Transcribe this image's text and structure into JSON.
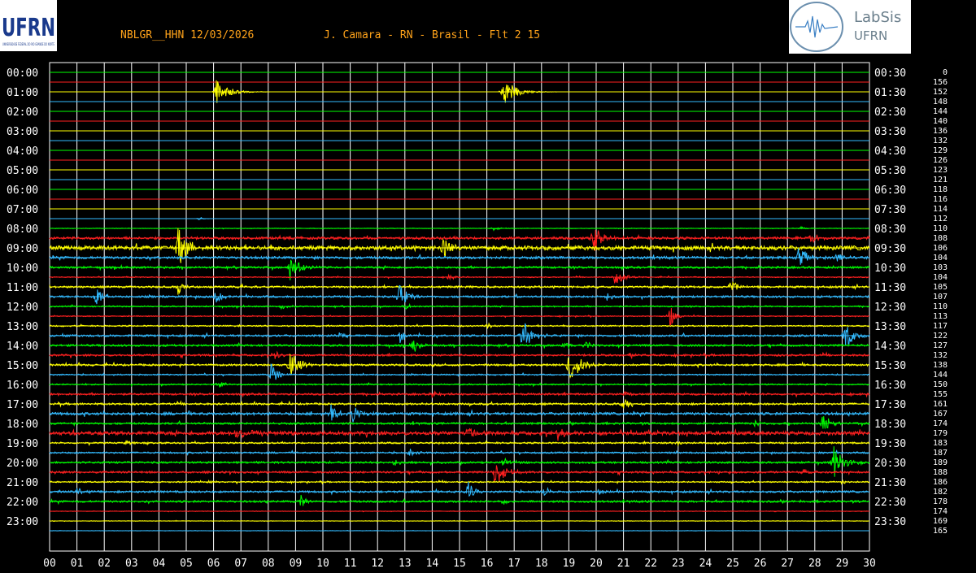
{
  "header": {
    "station_date": "NBLGR__HHN 12/03/2026",
    "location_filter": "J. Camara - RN - Brasil - Flt 2 15"
  },
  "logos": {
    "left": {
      "text": "UFRN",
      "subtext": "UNIVERSIDADE FEDERAL DO RIO GRANDE DO NORTE",
      "color": "#1a3a8c"
    },
    "right": {
      "line1": "LabSis",
      "line2": "UFRN",
      "color": "#6b7f8c"
    }
  },
  "colors": {
    "background": "#000000",
    "grid": "#ffffff",
    "header_text": "#ffa31a",
    "trace_cycle": [
      "#00ff00",
      "#ff2020",
      "#ffff00",
      "#33bbff"
    ]
  },
  "chart_data": {
    "type": "line",
    "title": "NBLGR__HHN 12/03/2026 J. Camara - RN - Brasil - Flt 2 15",
    "xlabel": "",
    "ylabel": "",
    "x_ticks": [
      "00",
      "01",
      "02",
      "03",
      "04",
      "05",
      "06",
      "07",
      "08",
      "09",
      "10",
      "11",
      "12",
      "13",
      "14",
      "15",
      "16",
      "17",
      "18",
      "19",
      "20",
      "21",
      "22",
      "23",
      "24",
      "25",
      "26",
      "27",
      "28",
      "29",
      "30"
    ],
    "xlim": [
      0,
      30
    ],
    "left_tick_labels": [
      "00:00",
      "01:00",
      "02:00",
      "03:00",
      "04:00",
      "05:00",
      "06:00",
      "07:00",
      "08:00",
      "09:00",
      "10:00",
      "11:00",
      "12:00",
      "13:00",
      "14:00",
      "15:00",
      "16:00",
      "17:00",
      "18:00",
      "19:00",
      "20:00",
      "21:00",
      "22:00",
      "23:00"
    ],
    "right_tick_labels": [
      "00:30",
      "01:30",
      "02:30",
      "03:30",
      "04:30",
      "05:30",
      "06:30",
      "07:30",
      "08:30",
      "09:30",
      "10:30",
      "11:30",
      "12:30",
      "13:30",
      "14:30",
      "15:30",
      "16:30",
      "17:30",
      "18:30",
      "19:30",
      "20:30",
      "21:30",
      "22:30",
      "23:30"
    ],
    "scale_values": [
      0,
      156,
      152,
      148,
      144,
      140,
      136,
      132,
      129,
      126,
      123,
      121,
      118,
      116,
      114,
      112,
      110,
      108,
      106,
      104,
      103,
      104,
      105,
      107,
      110,
      113,
      117,
      122,
      127,
      132,
      138,
      144,
      150,
      155,
      161,
      167,
      174,
      179,
      183,
      187,
      189,
      188,
      186,
      182,
      178,
      174,
      169,
      165
    ],
    "grid": true,
    "traces": [
      {
        "noise": 0,
        "events": []
      },
      {
        "noise": 0,
        "events": []
      },
      {
        "noise": 0,
        "events": [
          [
            6.1,
            16,
            0.9
          ],
          [
            16.6,
            18,
            0.9
          ]
        ]
      },
      {
        "noise": 0,
        "events": []
      },
      {
        "noise": 0,
        "events": []
      },
      {
        "noise": 0,
        "events": []
      },
      {
        "noise": 0,
        "events": []
      },
      {
        "noise": 0,
        "events": []
      },
      {
        "noise": 0,
        "events": []
      },
      {
        "noise": 0,
        "events": []
      },
      {
        "noise": 0,
        "events": []
      },
      {
        "noise": 0,
        "events": []
      },
      {
        "noise": 0,
        "events": []
      },
      {
        "noise": 0,
        "events": []
      },
      {
        "noise": 0,
        "events": []
      },
      {
        "noise": 0,
        "events": [
          [
            5.5,
            3,
            0.2
          ]
        ]
      },
      {
        "noise": 0.3,
        "events": [
          [
            16.2,
            3,
            0.6
          ],
          [
            27.5,
            2,
            0.4
          ]
        ]
      },
      {
        "noise": 1.5,
        "events": [
          [
            19.9,
            20,
            0.6
          ],
          [
            27.8,
            8,
            0.5
          ]
        ]
      },
      {
        "noise": 2.5,
        "events": [
          [
            4.7,
            24,
            0.8
          ],
          [
            14.4,
            16,
            0.7
          ]
        ]
      },
      {
        "noise": 1.5,
        "events": [
          [
            27.4,
            14,
            0.7
          ],
          [
            28.8,
            6,
            0.5
          ]
        ]
      },
      {
        "noise": 1.2,
        "events": [
          [
            8.8,
            16,
            0.7
          ]
        ]
      },
      {
        "noise": 0.6,
        "events": [
          [
            14.6,
            5,
            0.4
          ],
          [
            20.7,
            12,
            0.6
          ]
        ]
      },
      {
        "noise": 1.2,
        "events": [
          [
            4.7,
            9,
            0.4
          ],
          [
            24.9,
            9,
            0.5
          ],
          [
            7.0,
            4,
            0.5
          ]
        ]
      },
      {
        "noise": 1.2,
        "events": [
          [
            1.7,
            16,
            0.4
          ],
          [
            6.1,
            9,
            0.4
          ],
          [
            12.8,
            16,
            0.6
          ],
          [
            20.4,
            5,
            0.4
          ]
        ]
      },
      {
        "noise": 0.8,
        "events": [
          [
            8.5,
            5,
            0.4
          ],
          [
            13.0,
            5,
            0.4
          ]
        ]
      },
      {
        "noise": 0.6,
        "events": [
          [
            22.7,
            14,
            0.4
          ]
        ]
      },
      {
        "noise": 0.8,
        "events": [
          [
            16.0,
            4,
            0.4
          ]
        ]
      },
      {
        "noise": 1.2,
        "events": [
          [
            17.3,
            20,
            0.7
          ],
          [
            12.8,
            11,
            0.4
          ],
          [
            29.1,
            18,
            0.6
          ],
          [
            10.6,
            5,
            0.4
          ]
        ]
      },
      {
        "noise": 1.2,
        "events": [
          [
            13.3,
            11,
            0.5
          ],
          [
            18.8,
            6,
            0.5
          ],
          [
            19.6,
            5,
            0.5
          ]
        ]
      },
      {
        "noise": 1.2,
        "events": [
          [
            8.2,
            9,
            0.4
          ],
          [
            21.2,
            4,
            0.4
          ]
        ]
      },
      {
        "noise": 1.2,
        "events": [
          [
            8.8,
            20,
            0.7
          ],
          [
            19.0,
            24,
            0.8
          ]
        ]
      },
      {
        "noise": 0.8,
        "events": [
          [
            8.1,
            16,
            0.5
          ]
        ]
      },
      {
        "noise": 0.8,
        "events": [
          [
            6.2,
            5,
            0.4
          ]
        ]
      },
      {
        "noise": 1.2,
        "events": [
          [
            14.0,
            5,
            0.6
          ],
          [
            21.0,
            4,
            0.4
          ]
        ]
      },
      {
        "noise": 1.2,
        "events": [
          [
            21.0,
            9,
            0.5
          ]
        ]
      },
      {
        "noise": 1.6,
        "events": [
          [
            10.3,
            12,
            0.5
          ],
          [
            11.1,
            12,
            0.6
          ]
        ]
      },
      {
        "noise": 1.2,
        "events": [
          [
            28.3,
            16,
            0.5
          ],
          [
            25.8,
            4,
            0.4
          ]
        ]
      },
      {
        "noise": 2.2,
        "events": [
          [
            6.8,
            6,
            1.8
          ],
          [
            15.3,
            9,
            0.5
          ],
          [
            18.6,
            9,
            0.5
          ]
        ]
      },
      {
        "noise": 1.0,
        "events": [
          [
            2.8,
            4,
            0.4
          ],
          [
            22.9,
            4,
            0.4
          ]
        ]
      },
      {
        "noise": 1.0,
        "events": [
          [
            13.2,
            8,
            0.4
          ]
        ]
      },
      {
        "noise": 1.2,
        "events": [
          [
            28.7,
            22,
            0.7
          ],
          [
            12.6,
            5,
            0.4
          ],
          [
            16.6,
            7,
            0.4
          ]
        ]
      },
      {
        "noise": 1.2,
        "events": [
          [
            16.3,
            20,
            0.7
          ],
          [
            27.6,
            4,
            0.4
          ]
        ]
      },
      {
        "noise": 0.8,
        "events": [
          [
            5.8,
            3,
            0.4
          ],
          [
            29.0,
            3,
            0.4
          ]
        ]
      },
      {
        "noise": 1.2,
        "events": [
          [
            15.3,
            13,
            0.5
          ],
          [
            18.1,
            7,
            0.4
          ],
          [
            1.0,
            6,
            0.5
          ],
          [
            20.1,
            4,
            0.4
          ]
        ]
      },
      {
        "noise": 1.2,
        "events": [
          [
            9.2,
            9,
            0.4
          ],
          [
            16.6,
            4,
            0.4
          ]
        ]
      },
      {
        "noise": 0.3,
        "events": []
      },
      {
        "noise": 0.3,
        "events": []
      },
      {
        "noise": 0.2,
        "events": []
      }
    ]
  }
}
